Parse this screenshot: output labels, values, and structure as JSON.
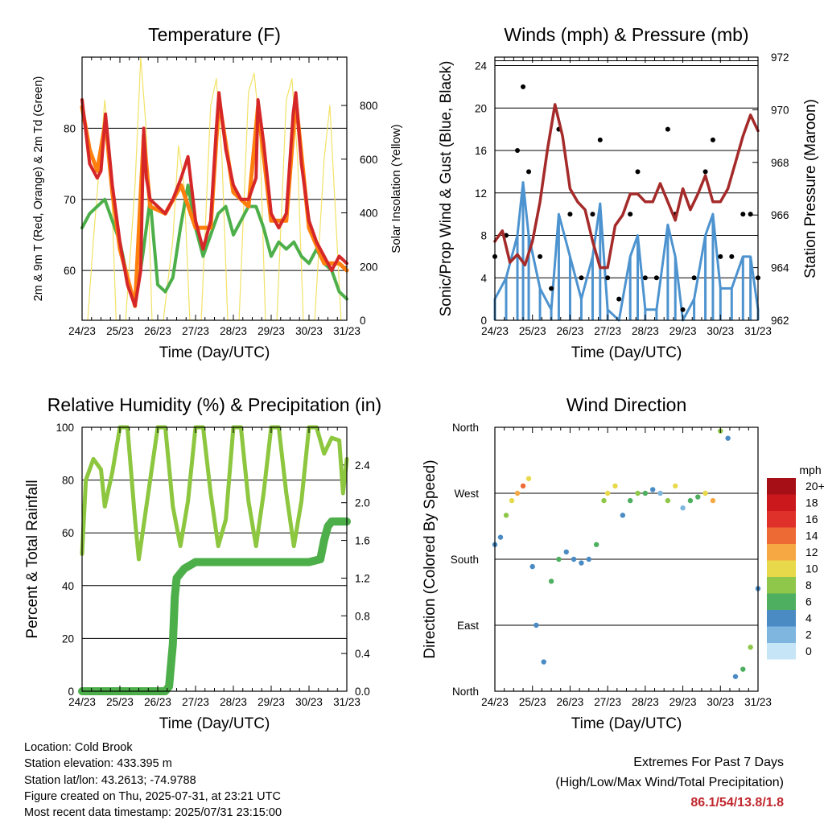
{
  "x_ticks": [
    "24/23",
    "25/23",
    "26/23",
    "27/23",
    "28/23",
    "29/23",
    "30/23",
    "31/23"
  ],
  "chart_data": [
    {
      "type": "line",
      "title": "Temperature (F)",
      "xlabel": "Time (Day/UTC)",
      "ylabel": "2m & 9m T (Red, Orange) & 2m Td (Green)",
      "ylabel_right": "Solar Insolation (Yellow)",
      "x_range": [
        "24/23",
        "31/23"
      ],
      "ylim": [
        53,
        90
      ],
      "y_ticks": [
        60,
        70,
        80
      ],
      "ylim_right": [
        0,
        980
      ],
      "y_ticks_right": [
        0,
        200,
        400,
        600,
        800
      ],
      "series": [
        {
          "color": "#d62728",
          "x_days": [
            0,
            0.2,
            0.4,
            0.5,
            0.62,
            0.8,
            1.0,
            1.2,
            1.4,
            1.55,
            1.63,
            1.7,
            1.8,
            2.0,
            2.2,
            2.4,
            2.62,
            2.8,
            3.0,
            3.2,
            3.4,
            3.55,
            3.62,
            3.8,
            4.0,
            4.2,
            4.4,
            4.6,
            4.65,
            4.8,
            5.0,
            5.2,
            5.4,
            5.58,
            5.65,
            5.8,
            6.0,
            6.2,
            6.4,
            6.6,
            6.8,
            7.0
          ],
          "values": [
            84,
            75,
            73,
            74,
            82,
            72,
            64,
            58,
            55,
            60,
            80,
            73,
            70,
            69,
            68,
            70,
            73,
            76,
            67,
            63,
            67,
            80,
            85,
            77,
            72,
            70,
            70,
            73,
            84,
            78,
            68,
            66,
            68,
            82,
            85,
            75,
            67,
            64,
            62,
            60,
            62,
            61
          ]
        },
        {
          "color": "#ff7f0e",
          "x_days": [
            0,
            0.2,
            0.4,
            0.62,
            0.8,
            1.0,
            1.4,
            1.63,
            1.8,
            2.2,
            2.62,
            3.0,
            3.4,
            3.62,
            4.0,
            4.4,
            4.65,
            5.0,
            5.4,
            5.65,
            6.0,
            6.4,
            6.8,
            7.0
          ],
          "values": [
            83,
            77,
            74,
            81,
            71,
            63,
            55,
            79,
            69,
            68,
            72,
            66,
            66,
            84,
            71,
            69,
            83,
            67,
            67,
            84,
            66,
            61,
            61,
            60
          ]
        },
        {
          "color": "#4daf4a",
          "x_days": [
            0,
            0.2,
            0.4,
            0.6,
            0.8,
            1.0,
            1.2,
            1.4,
            1.6,
            1.8,
            2.0,
            2.2,
            2.4,
            2.6,
            2.8,
            3.0,
            3.2,
            3.4,
            3.6,
            3.8,
            4.0,
            4.2,
            4.4,
            4.6,
            4.8,
            5.0,
            5.2,
            5.4,
            5.6,
            5.8,
            6.0,
            6.2,
            6.4,
            6.6,
            6.8,
            7.0
          ],
          "values": [
            66,
            68,
            69,
            70,
            67,
            64,
            59,
            55,
            62,
            70,
            58,
            57,
            59,
            66,
            72,
            66,
            62,
            65,
            68,
            69,
            65,
            67,
            69,
            69,
            66,
            62,
            64,
            63,
            64,
            62,
            61,
            63,
            61,
            60,
            57,
            56
          ]
        },
        {
          "color": "#f2e266",
          "x_days": [
            0.15,
            0.3,
            0.6,
            0.75,
            0.9,
            1.15,
            1.4,
            1.55,
            1.7,
            1.85,
            2.15,
            2.4,
            2.55,
            2.7,
            2.85,
            3.15,
            3.4,
            3.55,
            3.7,
            3.85,
            4.15,
            4.4,
            4.55,
            4.7,
            4.85,
            5.15,
            5.4,
            5.55,
            5.7,
            5.85,
            6.15,
            6.4,
            6.55,
            6.7,
            6.85
          ],
          "values": [
            0,
            300,
            820,
            600,
            0,
            0,
            500,
            980,
            700,
            0,
            0,
            300,
            650,
            500,
            0,
            0,
            800,
            900,
            600,
            0,
            0,
            850,
            920,
            700,
            0,
            0,
            820,
            900,
            600,
            0,
            0,
            600,
            800,
            400,
            0
          ]
        }
      ]
    },
    {
      "type": "line",
      "title": "Winds (mph) & Pressure (mb)",
      "xlabel": "Time (Day/UTC)",
      "ylabel": "Sonic/Prop Wind & Gust (Blue, Black)",
      "ylabel_right": "Station Pressure (Maroon)",
      "x_range": [
        "24/23",
        "31/23"
      ],
      "ylim": [
        0,
        24.8
      ],
      "y_ticks": [
        0,
        4,
        8,
        12,
        16,
        20,
        24
      ],
      "ylim_right": [
        962,
        972
      ],
      "y_ticks_right": [
        962,
        964,
        966,
        968,
        970,
        972
      ],
      "series": [
        {
          "color": "#000000",
          "x_days": [
            0.0,
            0.3,
            0.6,
            0.75,
            0.9,
            1.2,
            1.5,
            1.7,
            2.0,
            2.3,
            2.6,
            2.8,
            3.0,
            3.3,
            3.6,
            3.8,
            4.0,
            4.3,
            4.6,
            4.8,
            5.0,
            5.3,
            5.6,
            5.8,
            6.0,
            6.3,
            6.6,
            6.8,
            7.0
          ],
          "values": [
            6,
            8,
            16,
            22,
            14,
            6,
            3,
            18,
            10,
            4,
            10,
            17,
            4,
            2,
            10,
            14,
            4,
            4,
            18,
            10,
            1,
            4,
            14,
            17,
            6,
            6,
            10,
            10,
            4
          ]
        },
        {
          "color": "#4d93cf",
          "x_days": [
            0.0,
            0.3,
            0.6,
            0.75,
            0.9,
            1.2,
            1.5,
            1.7,
            2.0,
            2.3,
            2.6,
            2.8,
            3.0,
            3.3,
            3.6,
            3.8,
            4.0,
            4.3,
            4.6,
            4.8,
            5.0,
            5.3,
            5.6,
            5.8,
            6.0,
            6.3,
            6.6,
            6.8,
            7.0
          ],
          "values": [
            2,
            4,
            8,
            13,
            8,
            3,
            1,
            10,
            6,
            2,
            6,
            11,
            1,
            0,
            6,
            8,
            1,
            1,
            9,
            6,
            0,
            2,
            8,
            10,
            3,
            3,
            6,
            6,
            1
          ]
        },
        {
          "color": "#a52a2a",
          "x_days": [
            0,
            0.2,
            0.4,
            0.6,
            0.8,
            1.0,
            1.2,
            1.4,
            1.6,
            1.8,
            2.0,
            2.2,
            2.4,
            2.6,
            2.8,
            3.0,
            3.2,
            3.4,
            3.6,
            3.8,
            4.0,
            4.2,
            4.4,
            4.6,
            4.8,
            5.0,
            5.2,
            5.4,
            5.6,
            5.8,
            6.0,
            6.2,
            6.4,
            6.6,
            6.8,
            7.0
          ],
          "values": [
            965,
            965.4,
            964.2,
            964.5,
            964.1,
            965,
            966.5,
            968.5,
            970.2,
            969,
            967,
            966.5,
            966.2,
            965,
            964,
            964,
            965.6,
            966,
            966.8,
            966.8,
            966.5,
            966.5,
            967.2,
            966.5,
            965.8,
            967,
            966.2,
            966.8,
            967.5,
            966.5,
            966.5,
            967,
            968,
            969,
            969.8,
            969.2
          ]
        }
      ]
    },
    {
      "type": "line",
      "title": "Relative Humidity (%) & Precipitation (in)",
      "xlabel": "Time (Day/UTC)",
      "ylabel": "Percent & Total Rainfall",
      "x_range": [
        "24/23",
        "31/23"
      ],
      "ylim": [
        0,
        100
      ],
      "y_ticks": [
        0,
        20,
        40,
        60,
        80,
        100
      ],
      "ylim_right": [
        0,
        2.8
      ],
      "y_ticks_right": [
        "0.0",
        "0.4",
        "0.8",
        "1.2",
        "1.6",
        "2.0",
        "2.4"
      ],
      "series": [
        {
          "color": "#8dc63f",
          "x_days": [
            0,
            0.1,
            0.3,
            0.5,
            0.6,
            0.8,
            1.0,
            1.2,
            1.4,
            1.5,
            1.6,
            1.8,
            2.0,
            2.2,
            2.4,
            2.6,
            2.8,
            3.0,
            3.2,
            3.4,
            3.6,
            3.8,
            4.0,
            4.2,
            4.4,
            4.6,
            4.8,
            5.0,
            5.2,
            5.4,
            5.6,
            5.8,
            6.0,
            6.2,
            6.4,
            6.6,
            6.8,
            6.9,
            7.0
          ],
          "values": [
            52,
            80,
            88,
            84,
            70,
            83,
            100,
            100,
            65,
            50,
            60,
            80,
            100,
            100,
            70,
            55,
            72,
            100,
            100,
            75,
            55,
            65,
            100,
            100,
            72,
            55,
            75,
            100,
            100,
            75,
            55,
            72,
            100,
            100,
            90,
            96,
            95,
            75,
            88
          ]
        },
        {
          "color": "#4daf4a",
          "x_days": [
            0,
            1.5,
            2.2,
            2.3,
            2.4,
            2.45,
            2.5,
            2.7,
            3.0,
            4.0,
            5.0,
            6.0,
            6.3,
            6.4,
            6.5,
            6.6,
            7.0
          ],
          "values": [
            0,
            0,
            0,
            0.05,
            0.5,
            1.0,
            1.2,
            1.3,
            1.37,
            1.37,
            1.37,
            1.37,
            1.4,
            1.6,
            1.75,
            1.8,
            1.8
          ]
        }
      ]
    },
    {
      "type": "scatter",
      "title": "Wind Direction",
      "xlabel": "Time (Day/UTC)",
      "ylabel": "Direction (Colored By Speed)",
      "x_range": [
        "24/23",
        "31/23"
      ],
      "y_ticks": [
        "North",
        "East",
        "South",
        "West",
        "North"
      ],
      "y_degrees": [
        0,
        90,
        180,
        270,
        360
      ],
      "colorbar_title": "mph",
      "colorbar_labels": [
        "20+",
        "18",
        "16",
        "14",
        "12",
        "10",
        "8",
        "6",
        "4",
        "2",
        "0"
      ],
      "colorbar_colors": [
        "#a50f15",
        "#cb181d",
        "#e0302a",
        "#ee6a35",
        "#f6a843",
        "#e8d94a",
        "#8fc74a",
        "#4daf5f",
        "#4a8bc4",
        "#7fb6e0",
        "#c6e6f7"
      ],
      "points": [
        {
          "x_days": [
            0.0,
            0.15,
            0.3,
            0.45,
            0.6,
            0.75,
            0.9,
            1.0,
            1.1,
            1.3,
            1.5,
            1.7,
            1.9,
            2.1,
            2.3,
            2.5,
            2.7,
            2.9,
            3.0,
            3.2,
            3.4,
            3.6,
            3.8,
            4.0,
            4.2,
            4.4,
            4.6,
            4.8,
            5.0,
            5.2,
            5.4,
            5.6,
            5.8,
            6.0,
            6.2,
            6.4,
            6.6,
            6.8,
            7.0
          ],
          "degrees": [
            200,
            210,
            240,
            260,
            270,
            280,
            290,
            170,
            90,
            40,
            150,
            180,
            190,
            180,
            175,
            180,
            200,
            260,
            270,
            280,
            240,
            260,
            270,
            270,
            275,
            270,
            260,
            280,
            250,
            260,
            265,
            270,
            260,
            355,
            345,
            20,
            30,
            60,
            140
          ],
          "speeds": [
            4,
            4,
            8,
            10,
            12,
            14,
            10,
            4,
            4,
            4,
            6,
            6,
            4,
            4,
            4,
            4,
            6,
            8,
            10,
            10,
            4,
            6,
            8,
            6,
            4,
            2,
            8,
            10,
            2,
            6,
            6,
            10,
            12,
            8,
            4,
            4,
            6,
            8,
            4
          ]
        }
      ]
    }
  ],
  "info": {
    "location": "Location: Cold Brook",
    "elevation": "Station elevation: 433.395 m",
    "latlon": "Station lat/lon: 43.2613; -74.9788",
    "created": "Figure created on Thu, 2025-07-31, at 23:21 UTC",
    "recent": "Most recent data timestamp: 2025/07/31 23:15:00"
  },
  "extremes": {
    "title": "Extremes For Past 7 Days",
    "subtitle": "(High/Low/Max Wind/Total Precipitation)",
    "values": "86.1/54/13.8/1.8"
  }
}
